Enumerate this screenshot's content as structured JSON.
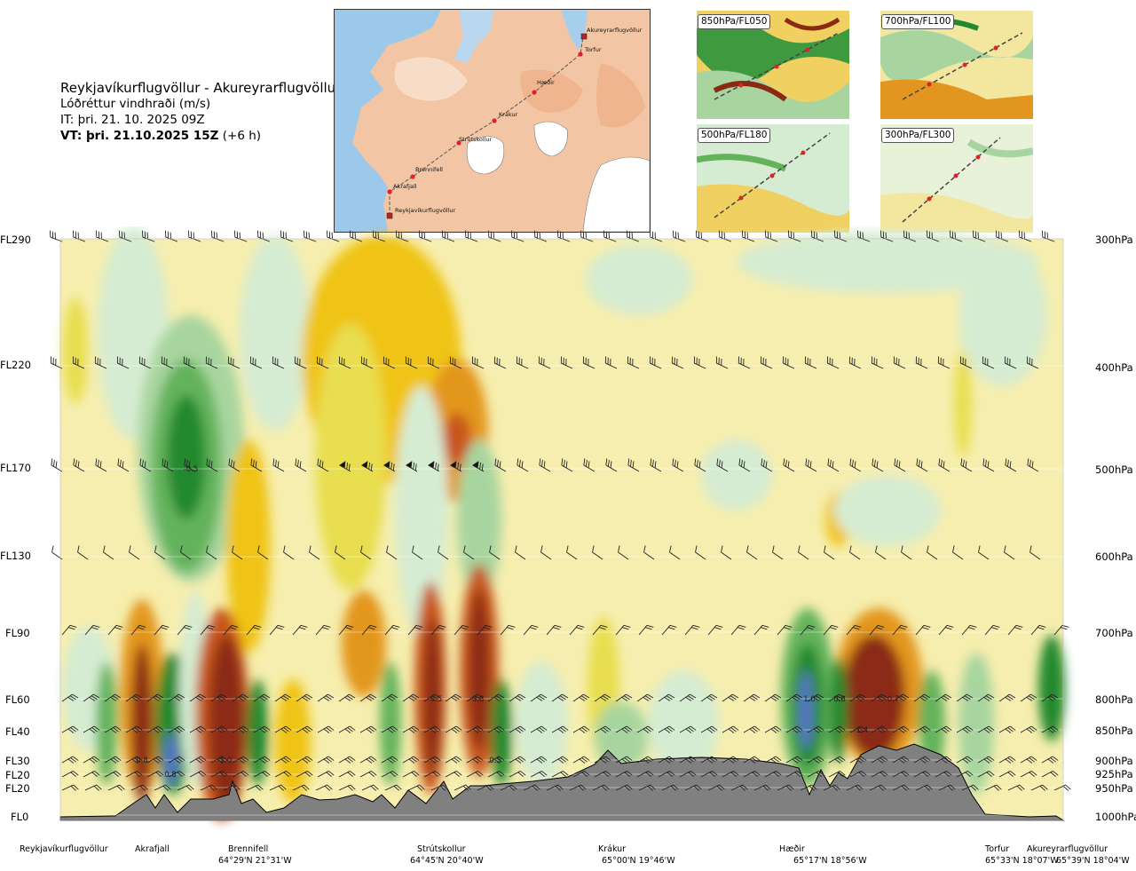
{
  "header": {
    "title": "Reykjavíkurflugvöllur - Akureyrarflugvöllur",
    "subtitle": "Lóðréttur vindhraði (m/s)",
    "issue_time": "IT: þri. 21. 10. 2025 09Z",
    "valid_time_bold": "VT: þri. 21.10.2025 15Z",
    "valid_time_offset": " (+6 h)"
  },
  "route_map": {
    "points": [
      "Akureyrarflugvöllur",
      "Torfur",
      "Hæðir",
      "Krákur",
      "Strútskollur",
      "Brennifell",
      "Akrafjall",
      "Reykjavíkurflugvöllur"
    ]
  },
  "level_panels": [
    {
      "label": "850hPa/FL050"
    },
    {
      "label": "700hPa/FL100"
    },
    {
      "label": "500hPa/FL180"
    },
    {
      "label": "300hPa/FL300"
    }
  ],
  "flight_levels": [
    "FL290",
    "FL220",
    "FL170",
    "FL130",
    "FL90",
    "FL60",
    "FL40",
    "FL30",
    "FL20",
    "FL20",
    "FL0"
  ],
  "pressure_levels": [
    "300hPa",
    "400hPa",
    "500hPa",
    "600hPa",
    "700hPa",
    "800hPa",
    "850hPa",
    "900hPa",
    "925hPa",
    "950hPa",
    "1000hPa"
  ],
  "waypoints": [
    {
      "name": "Reykjavíkurflugvöllur",
      "coord": ""
    },
    {
      "name": "Akrafjall",
      "coord": ""
    },
    {
      "name": "Brennifell",
      "coord": "64°29'N 21°31'W"
    },
    {
      "name": "Strútskollur",
      "coord": "64°45'N 20°40'W"
    },
    {
      "name": "Krákur",
      "coord": "65°00'N 19°46'W"
    },
    {
      "name": "Hæðir",
      "coord": "65°17'N 18°56'W"
    },
    {
      "name": "Torfur",
      "coord": "65°33'N 18°07'W"
    },
    {
      "name": "Akureyrarflugvöllur",
      "coord": "65°39'N 18°04'W"
    }
  ],
  "colors": {
    "strong_down": "#8b2a12",
    "down_2": "#c8561c",
    "down_3": "#e3961f",
    "down_4": "#f0c419",
    "down_5": "#e8de50",
    "neutral": "#f6eeae",
    "up_1": "#d6ecd2",
    "up_2": "#a8d59f",
    "up_3": "#63b35c",
    "up_4": "#23892f",
    "strong_up": "#5874c8",
    "terrain": "#808080"
  },
  "chart_data": {
    "type": "heatmap",
    "title": "Lóðréttur vindhraði (m/s)",
    "x_categories": [
      "Reykjavíkurflugvöllur",
      "Akrafjall",
      "Brennifell",
      "Strútskollur",
      "Krákur",
      "Hæðir",
      "Torfur",
      "Akureyrarflugvöllur"
    ],
    "y_levels_hpa": [
      300,
      400,
      500,
      600,
      700,
      800,
      850,
      900,
      925,
      950,
      1000
    ],
    "contour_labels": [
      {
        "value": "-0.5",
        "near": "Akrafjall",
        "level_hpa": 500
      },
      {
        "value": "0.8",
        "near": "Akrafjall",
        "level_hpa": 900
      },
      {
        "value": "0.8",
        "near": "Akrafjall",
        "level_hpa": 925
      },
      {
        "value": "-1.0",
        "near": "Brennifell",
        "level_hpa": 900
      },
      {
        "value": "-0.5",
        "near": "Strútskollur",
        "level_hpa": 800
      },
      {
        "value": "-0.8",
        "near": "Strútskollur",
        "level_hpa": 800
      },
      {
        "value": "0.5",
        "near": "Strútskollur",
        "level_hpa": 900
      },
      {
        "value": "1.0",
        "near": "Hæðir",
        "level_hpa": 800
      },
      {
        "value": "0.8",
        "near": "Hæðir",
        "level_hpa": 800
      },
      {
        "value": "-0.7",
        "near": "Hæðir",
        "level_hpa": 800
      },
      {
        "value": "-1.4",
        "near": "Hæðir",
        "level_hpa": 850
      }
    ],
    "grid": true,
    "wind_barbs": true,
    "terrain_profile": true
  }
}
